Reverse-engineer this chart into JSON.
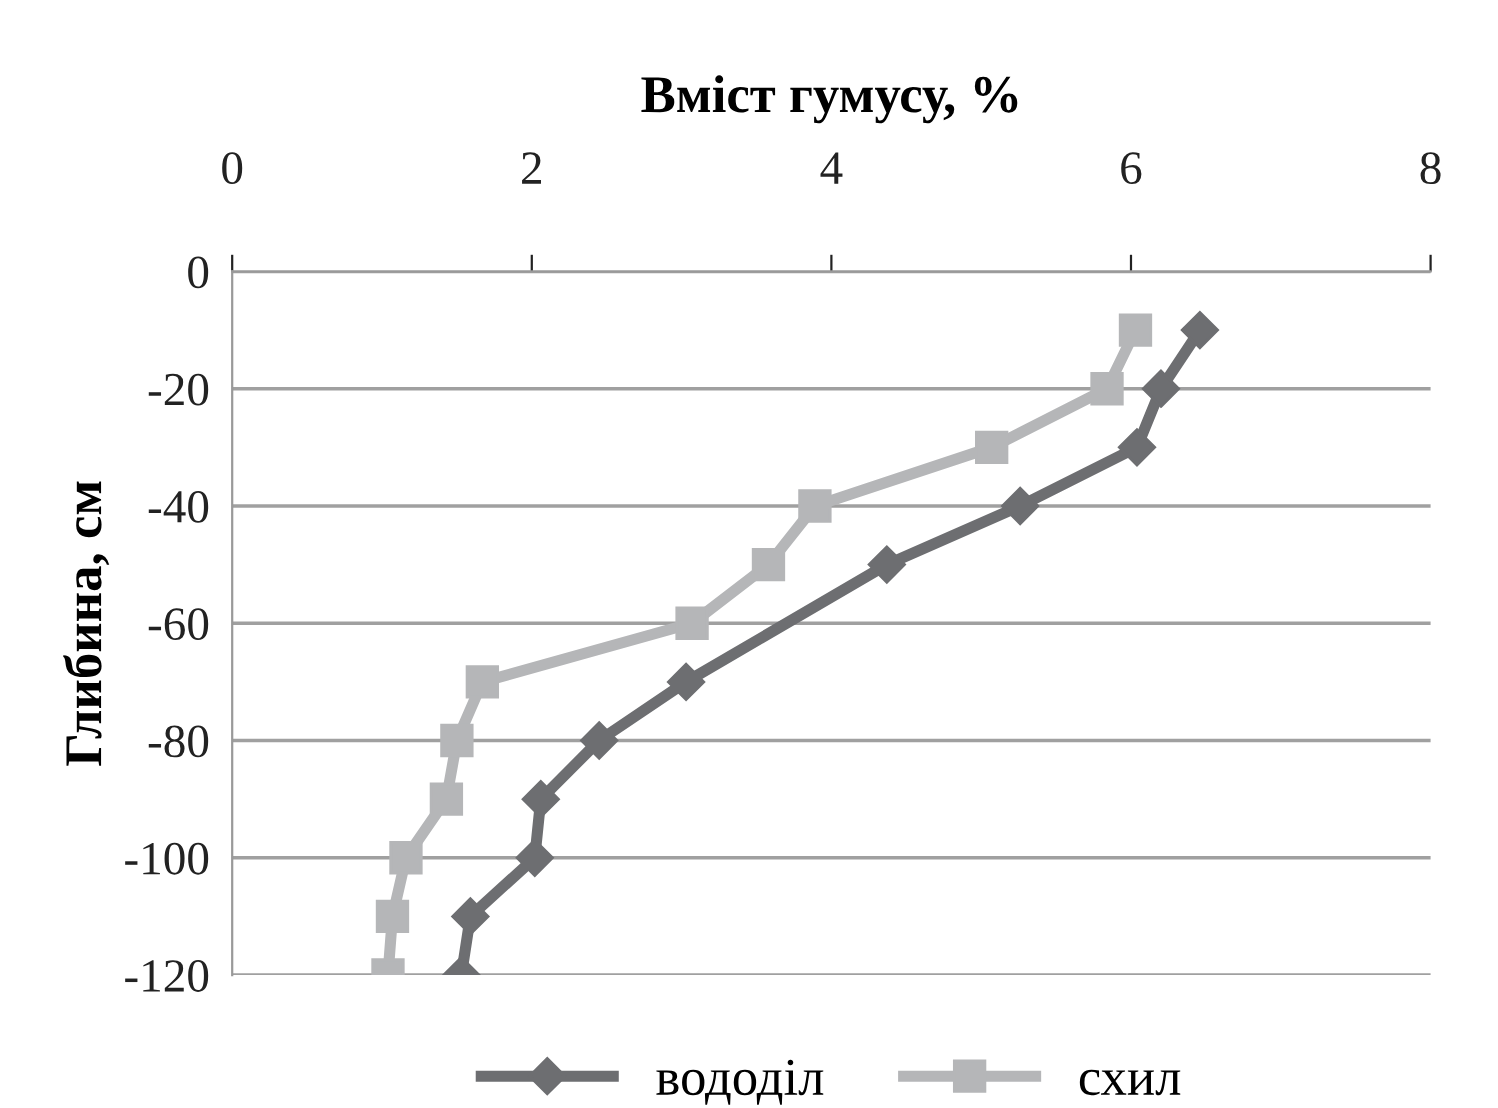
{
  "chart_data": {
    "type": "line",
    "xlabel": "Вміст гумусу, %",
    "ylabel": "Глибина, см",
    "series": [
      {
        "name": "вододіл",
        "color": "#6d6e71",
        "marker": "diamond",
        "x": [
          6.46,
          6.2,
          6.04,
          5.26,
          4.37,
          3.12,
          3.03,
          2.45,
          2.06,
          2.02,
          1.59,
          1.53
        ],
        "values": [
          -10,
          -20,
          -30,
          -40,
          -50,
          null,
          -70,
          -80,
          -90,
          -100,
          -110,
          -120
        ]
      },
      {
        "name": "схил",
        "color": "#b5b6b8",
        "marker": "square",
        "x": [
          6.03,
          5.84,
          5.07,
          3.89,
          3.58,
          3.07,
          1.67,
          1.5,
          1.43,
          1.16,
          1.07,
          1.04
        ],
        "values": [
          -10,
          -20,
          -30,
          -40,
          -50,
          -60,
          -70,
          -80,
          -90,
          -100,
          -110,
          -120
        ]
      }
    ],
    "xlim": [
      0,
      8
    ],
    "xticks": [
      0,
      2,
      4,
      6,
      8
    ],
    "ylim": [
      -120,
      0
    ],
    "yticks": [
      0,
      -20,
      -40,
      -60,
      -80,
      -100,
      -120
    ],
    "grid": "y",
    "legend": "bottom",
    "line_style": "solid"
  }
}
